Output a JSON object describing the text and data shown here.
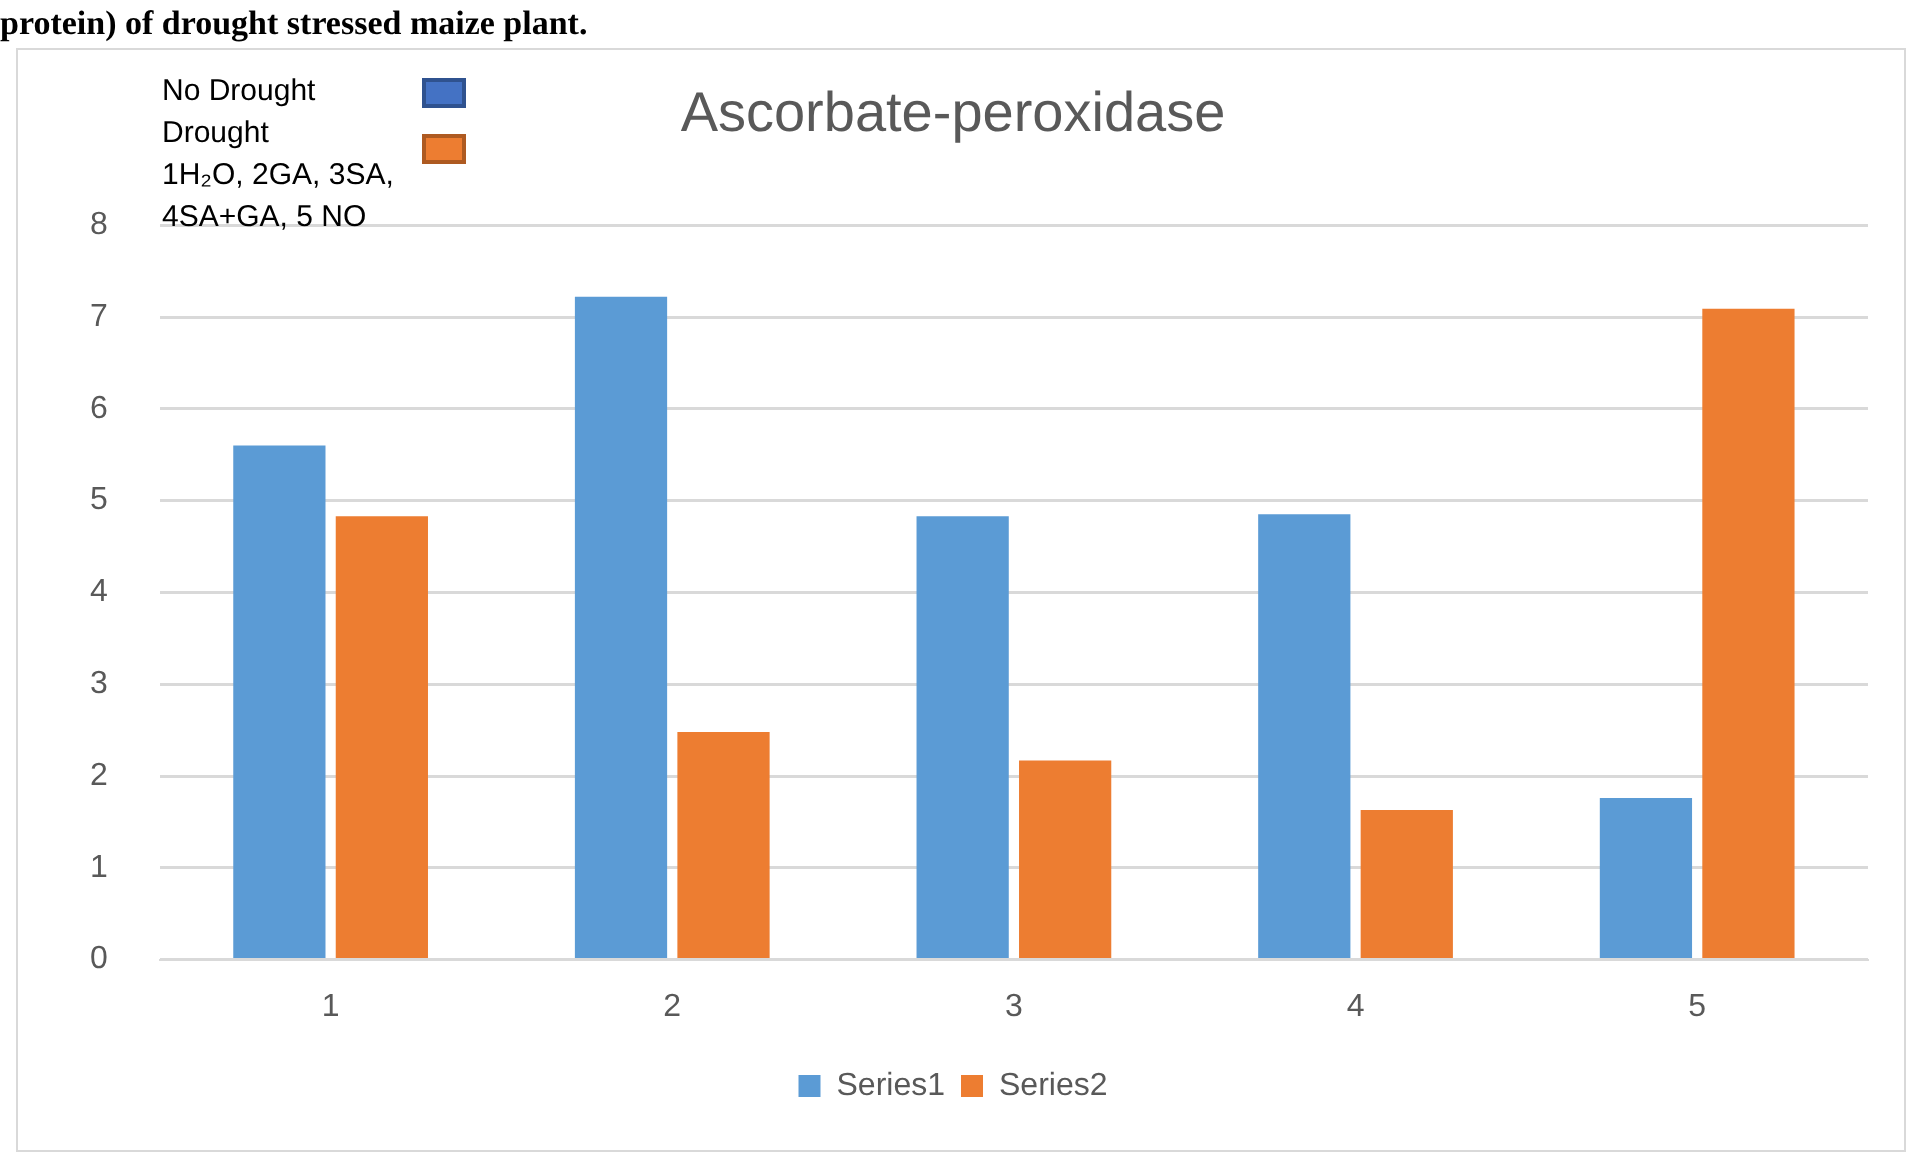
{
  "chart_data": {
    "type": "bar",
    "title": "Ascorbate-peroxidase",
    "categories": [
      "1",
      "2",
      "3",
      "4",
      "5"
    ],
    "series": [
      {
        "name": "Series1",
        "color": "#5b9bd5",
        "values": [
          5.6,
          7.22,
          4.83,
          4.85,
          1.76
        ]
      },
      {
        "name": "Series2",
        "color": "#ed7d31",
        "values": [
          4.83,
          2.48,
          2.17,
          1.63,
          7.09
        ]
      }
    ],
    "ylim": [
      0,
      8
    ],
    "yticks": [
      0,
      1,
      2,
      3,
      4,
      5,
      6,
      7,
      8
    ],
    "grid": "y",
    "legend": "bottom",
    "annotations": [
      "protein) of drought stressed maize plant.",
      "No Drought",
      "Drought",
      "1H₂O, 2GA, 3SA, 4SA+GA, 5 NO"
    ]
  }
}
